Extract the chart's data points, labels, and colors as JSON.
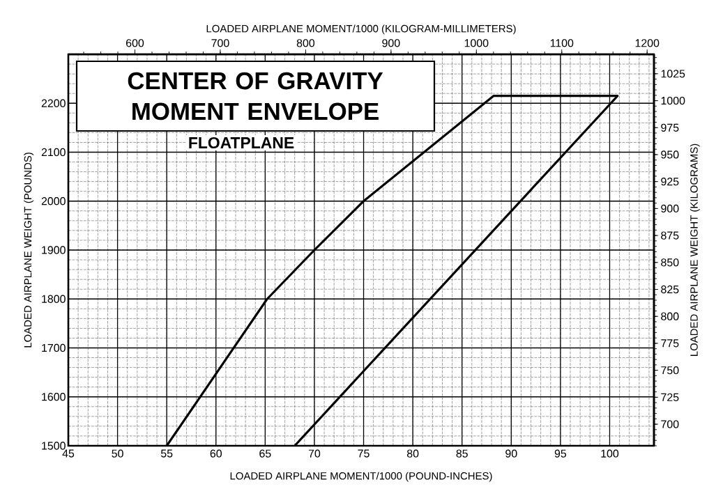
{
  "chart_data": {
    "type": "line",
    "title": "CENTER OF GRAVITY MOMENT ENVELOPE",
    "subtitle": "FLOATPLANE",
    "xlabel": "LOADED AIRPLANE MOMENT/1000 (POUND-INCHES)",
    "ylabel": "LOADED AIRPLANE WEIGHT (POUNDS)",
    "x2label": "LOADED AIRPLANE MOMENT/1000 (KILOGRAM-MILLIMETERS)",
    "y2label": "LOADED AIRPLANE WEIGHT (KILOGRAMS)",
    "x": [
      55,
      65.2,
      70,
      75,
      88.2,
      100.8,
      68
    ],
    "series": [
      {
        "color": "#000000",
        "values": [
          1500,
          1800,
          1900,
          2000,
          2215,
          2215,
          1500
        ]
      }
    ],
    "xlim": [
      45,
      104.5
    ],
    "ylim": [
      1500,
      2300
    ],
    "xticks": [
      45,
      50,
      55,
      60,
      65,
      70,
      75,
      80,
      85,
      90,
      95,
      100
    ],
    "yticks": [
      1500,
      1600,
      1700,
      1800,
      1900,
      2000,
      2100,
      2200
    ],
    "x2lim": [
      522,
      1208
    ],
    "x2ticks": [
      600,
      700,
      800,
      900,
      1000,
      1100,
      1200
    ],
    "y2lim": [
      680,
      1043
    ],
    "y2ticks": [
      700,
      725,
      750,
      775,
      800,
      825,
      850,
      875,
      900,
      925,
      950,
      975,
      1000,
      1025
    ],
    "grid": true,
    "marker": "none",
    "line_style": "solid"
  }
}
